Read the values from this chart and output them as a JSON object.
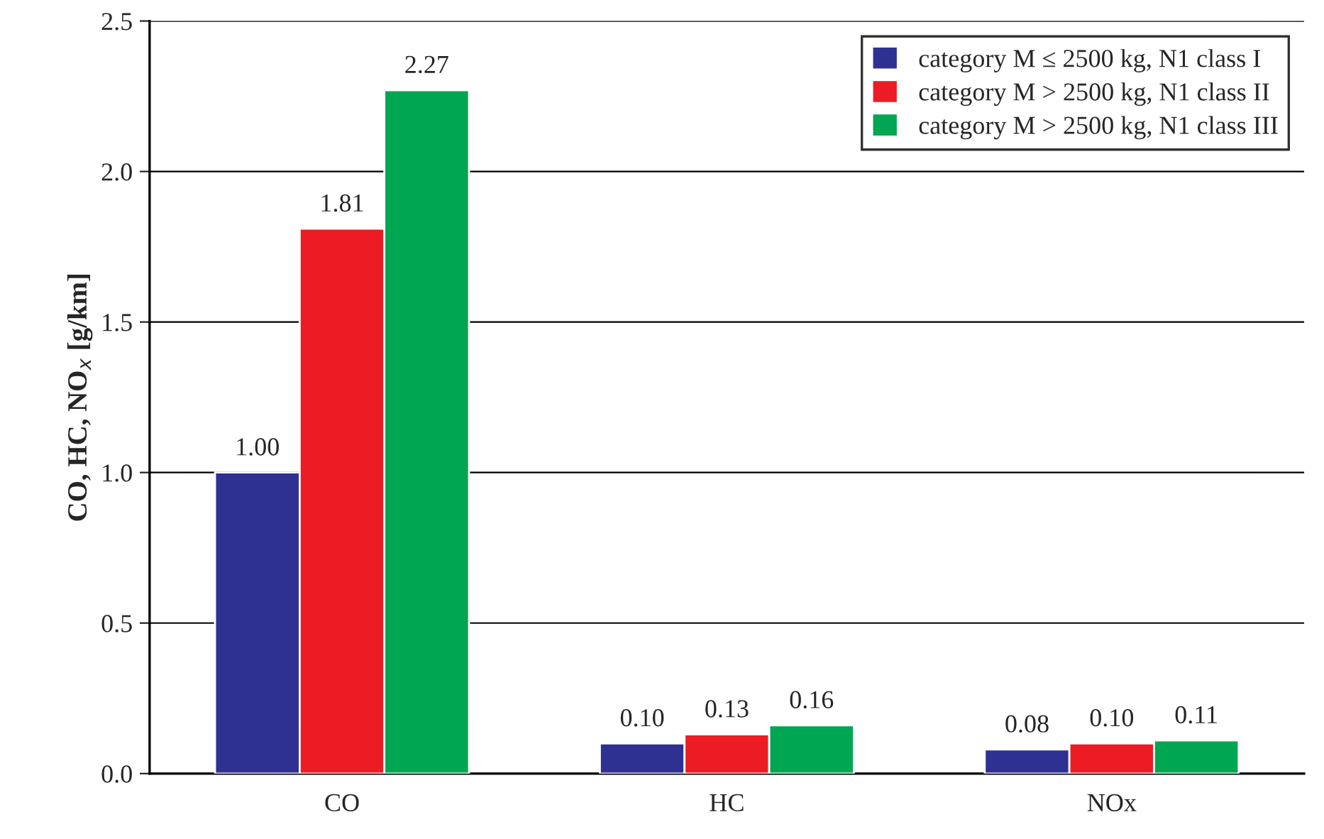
{
  "chart_data": {
    "type": "bar",
    "ylabel": "CO, HC, NO$_{x}$ [g/km]",
    "categories": [
      "CO",
      "HC",
      "NOx"
    ],
    "series": [
      {
        "name": "category M ≤ 2500 kg, N1 class I",
        "color": "#2e3192",
        "values": [
          1.0,
          0.1,
          0.08
        ],
        "value_labels": [
          "1.00",
          "0.10",
          "0.08"
        ]
      },
      {
        "name": "category M > 2500 kg, N1 class II",
        "color": "#ed1c24",
        "values": [
          1.81,
          0.13,
          0.1
        ],
        "value_labels": [
          "1.81",
          "0.13",
          "0.10"
        ]
      },
      {
        "name": "category M > 2500 kg, N1 class III",
        "color": "#00a651",
        "values": [
          2.27,
          0.16,
          0.11
        ],
        "value_labels": [
          "2.27",
          "0.16",
          "0.11"
        ]
      }
    ],
    "ylim": [
      0,
      2.5
    ],
    "yticks": [
      {
        "value": 0,
        "label": "0.0"
      },
      0.5,
      {
        "value": 1,
        "label": "1.0"
      },
      1.5,
      {
        "value": 2,
        "label": "2.0"
      },
      2.5
    ],
    "grid": "y",
    "legend": "top right"
  }
}
